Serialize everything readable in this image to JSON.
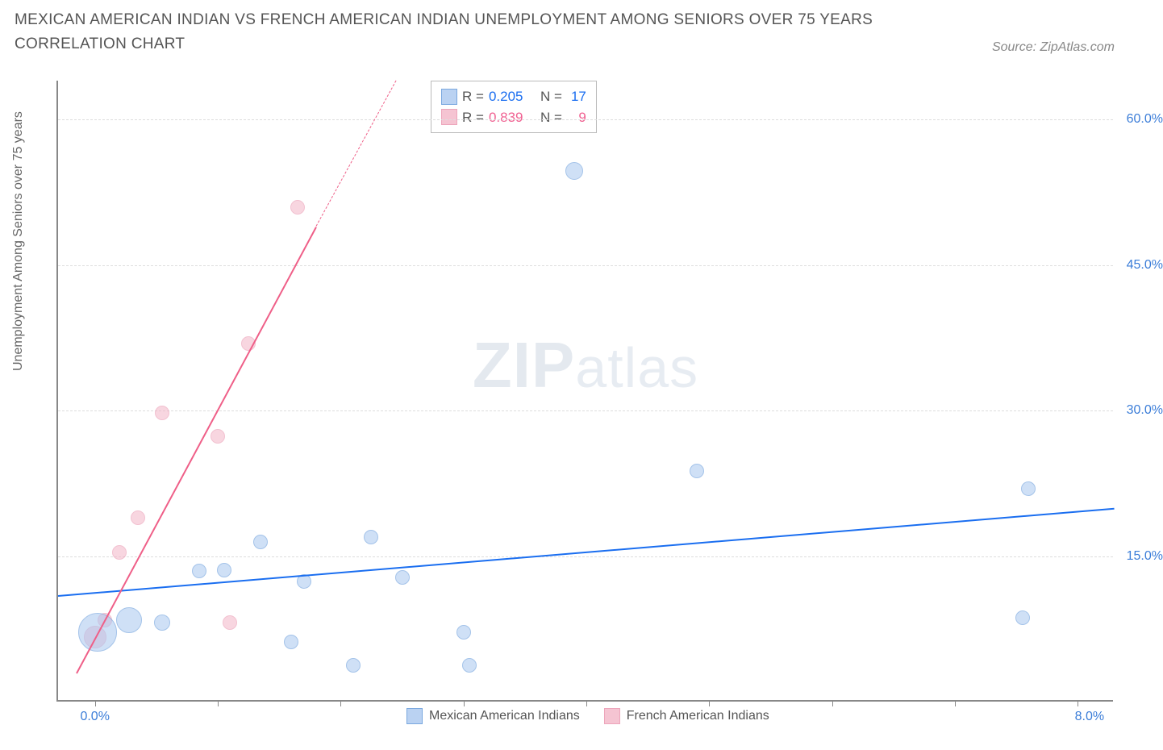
{
  "title": "MEXICAN AMERICAN INDIAN VS FRENCH AMERICAN INDIAN UNEMPLOYMENT AMONG SENIORS OVER 75 YEARS CORRELATION CHART",
  "source_label": "Source: ZipAtlas.com",
  "ylabel": "Unemployment Among Seniors over 75 years",
  "watermark_a": "ZIP",
  "watermark_b": "atlas",
  "chart": {
    "type": "scatter",
    "xlim": [
      -0.3,
      8.3
    ],
    "ylim": [
      0,
      64
    ],
    "background_color": "#ffffff",
    "grid_color": "#dddddd",
    "axis_color": "#888888",
    "ytick_values": [
      15.0,
      30.0,
      45.0,
      60.0
    ],
    "ytick_labels": [
      "15.0%",
      "30.0%",
      "45.0%",
      "60.0%"
    ],
    "xtick_values": [
      0,
      1,
      2,
      3,
      4,
      5,
      6,
      7,
      8
    ],
    "xaxis_label_left": "0.0%",
    "xaxis_label_right": "8.0%",
    "series": {
      "mexican": {
        "label": "Mexican American Indians",
        "fill": "#a9c7ef",
        "stroke": "#5a93d8",
        "fill_opacity": 0.55,
        "trend_color": "#1a6ef0",
        "r_value": "0.205",
        "n_value": "17",
        "trend": {
          "x1": -0.3,
          "y1": 11.0,
          "x2": 8.3,
          "y2": 20.0
        },
        "points": [
          {
            "x": 0.02,
            "y": 7.0,
            "r": 24
          },
          {
            "x": 0.28,
            "y": 8.2,
            "r": 16
          },
          {
            "x": 0.55,
            "y": 8.0,
            "r": 10
          },
          {
            "x": 0.85,
            "y": 13.3,
            "r": 9
          },
          {
            "x": 1.05,
            "y": 13.4,
            "r": 9
          },
          {
            "x": 1.35,
            "y": 16.3,
            "r": 9
          },
          {
            "x": 1.6,
            "y": 6.0,
            "r": 9
          },
          {
            "x": 1.7,
            "y": 12.2,
            "r": 9
          },
          {
            "x": 2.1,
            "y": 3.6,
            "r": 9
          },
          {
            "x": 2.25,
            "y": 16.8,
            "r": 9
          },
          {
            "x": 2.5,
            "y": 12.6,
            "r": 9
          },
          {
            "x": 3.0,
            "y": 7.0,
            "r": 9
          },
          {
            "x": 3.05,
            "y": 3.6,
            "r": 9
          },
          {
            "x": 3.9,
            "y": 54.5,
            "r": 11
          },
          {
            "x": 4.9,
            "y": 23.6,
            "r": 9
          },
          {
            "x": 7.55,
            "y": 8.5,
            "r": 9
          },
          {
            "x": 7.6,
            "y": 21.8,
            "r": 9
          }
        ]
      },
      "french": {
        "label": "French American Indians",
        "fill": "#f3b6c8",
        "stroke": "#e98fab",
        "fill_opacity": 0.55,
        "trend_color": "#ef5f88",
        "r_value": "0.839",
        "n_value": "9",
        "trend_solid": {
          "x1": -0.15,
          "y1": 3.0,
          "x2": 1.8,
          "y2": 49.0
        },
        "trend_dash": {
          "x1": 1.8,
          "y1": 49.0,
          "x2": 2.45,
          "y2": 64.0
        },
        "points": [
          {
            "x": 0.0,
            "y": 6.5,
            "r": 14
          },
          {
            "x": 0.08,
            "y": 8.2,
            "r": 9
          },
          {
            "x": 0.2,
            "y": 15.2,
            "r": 9
          },
          {
            "x": 0.35,
            "y": 18.8,
            "r": 9
          },
          {
            "x": 0.55,
            "y": 29.6,
            "r": 9
          },
          {
            "x": 1.0,
            "y": 27.2,
            "r": 9
          },
          {
            "x": 1.1,
            "y": 8.0,
            "r": 9
          },
          {
            "x": 1.25,
            "y": 36.7,
            "r": 9
          },
          {
            "x": 1.65,
            "y": 50.8,
            "r": 9
          }
        ]
      }
    }
  },
  "legend_top": {
    "r_label": "R =",
    "n_label": "N ="
  }
}
